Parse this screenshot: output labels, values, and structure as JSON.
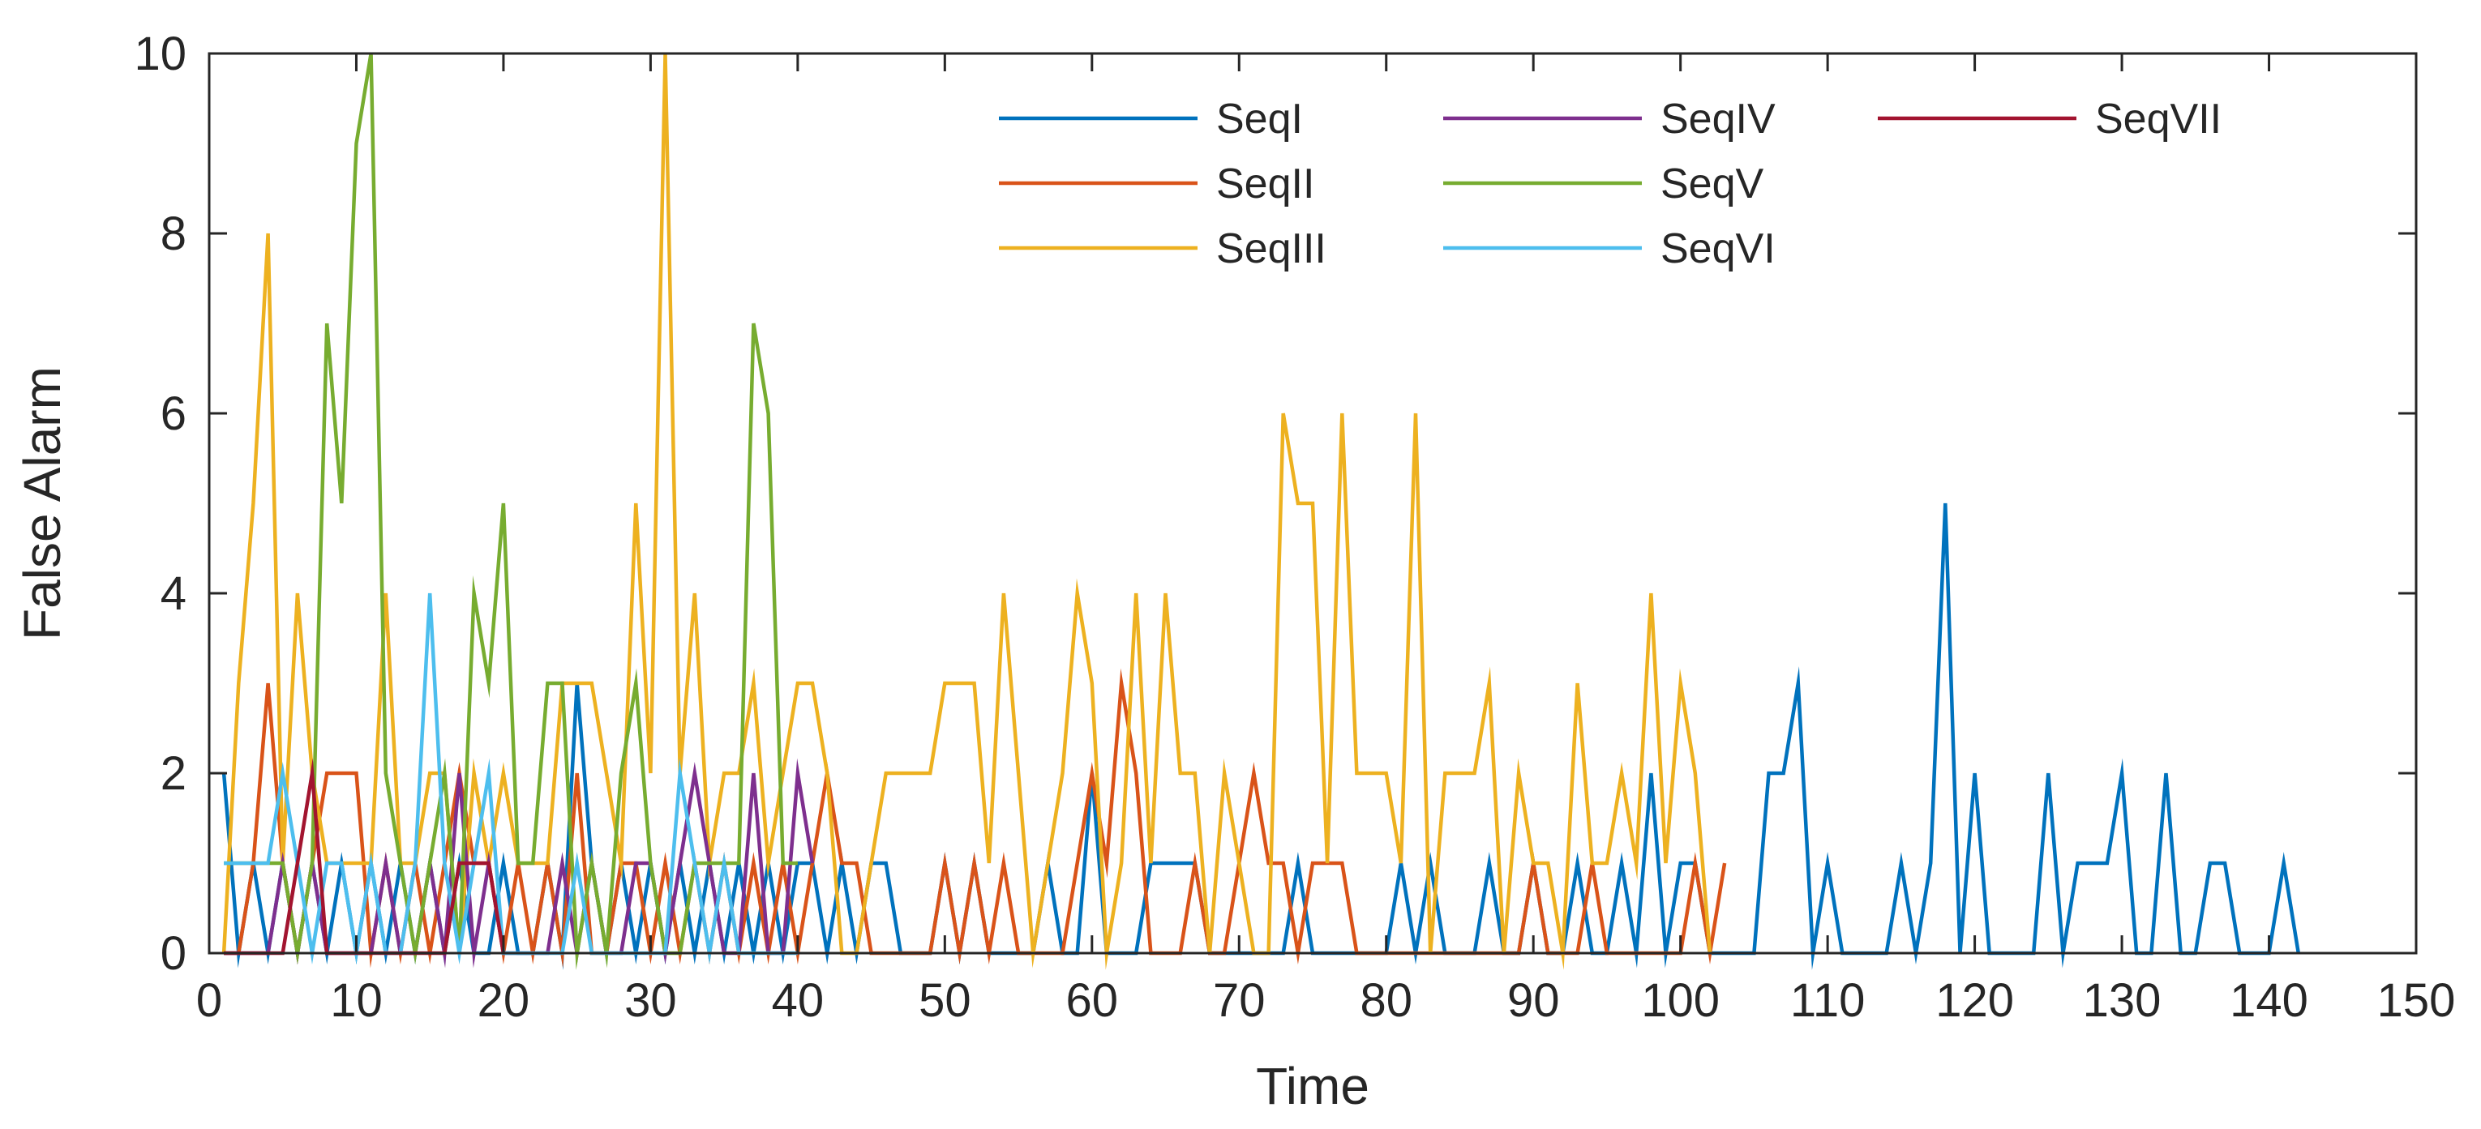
{
  "chart_data": {
    "type": "line",
    "title": "",
    "xlabel": "Time",
    "ylabel": "False Alarm",
    "xlim": [
      0,
      150
    ],
    "ylim": [
      0,
      10
    ],
    "xticks": [
      0,
      10,
      20,
      30,
      40,
      50,
      60,
      70,
      80,
      90,
      100,
      110,
      120,
      130,
      140,
      150
    ],
    "yticks": [
      0,
      2,
      4,
      6,
      8,
      10
    ],
    "grid": false,
    "legend_position": "top-right",
    "series": [
      {
        "name": "SeqI",
        "color": "#0072BD",
        "x": [
          1,
          2,
          3,
          4,
          5,
          6,
          7,
          8,
          9,
          10,
          11,
          12,
          13,
          14,
          15,
          16,
          17,
          18,
          19,
          20,
          21,
          22,
          23,
          24,
          25,
          26,
          27,
          28,
          29,
          30,
          31,
          32,
          33,
          34,
          35,
          36,
          37,
          38,
          39,
          40,
          41,
          42,
          43,
          44,
          45,
          46,
          47,
          48,
          49,
          50,
          51,
          52,
          53,
          54,
          55,
          56,
          57,
          58,
          59,
          60,
          61,
          62,
          63,
          64,
          65,
          66,
          67,
          68,
          69,
          70,
          71,
          72,
          73,
          74,
          75,
          76,
          77,
          78,
          79,
          80,
          81,
          82,
          83,
          84,
          85,
          86,
          87,
          88,
          89,
          90,
          91,
          92,
          93,
          94,
          95,
          96,
          97,
          98,
          99,
          100,
          101,
          102,
          103,
          104,
          105,
          106,
          107,
          108,
          109,
          110,
          111,
          112,
          113,
          114,
          115,
          116,
          117,
          118,
          119,
          120,
          121,
          122,
          123,
          124,
          125,
          126,
          127,
          128,
          129,
          130,
          131,
          132,
          133,
          134,
          135,
          136,
          137,
          138,
          139,
          140,
          141,
          142
        ],
        "values": [
          2,
          0,
          1,
          0,
          1,
          0,
          1,
          0,
          1,
          0,
          1,
          0,
          1,
          0,
          1,
          0,
          1,
          0,
          0,
          1,
          0,
          0,
          1,
          0,
          3,
          1,
          0,
          1,
          0,
          1,
          0,
          1,
          0,
          1,
          0,
          1,
          0,
          1,
          0,
          1,
          1,
          0,
          1,
          0,
          1,
          1,
          0,
          0,
          0,
          1,
          0,
          1,
          0,
          0,
          0,
          0,
          1,
          0,
          0,
          2,
          0,
          0,
          0,
          1,
          1,
          1,
          1,
          0,
          0,
          0,
          0,
          0,
          0,
          1,
          0,
          0,
          0,
          0,
          0,
          0,
          1,
          0,
          1,
          0,
          0,
          0,
          1,
          0,
          0,
          1,
          0,
          0,
          1,
          0,
          0,
          1,
          0,
          2,
          0,
          1,
          1,
          0,
          0,
          0,
          0,
          2,
          2,
          3,
          0,
          1,
          0,
          0,
          0,
          0,
          1,
          0,
          1,
          5,
          0,
          2,
          0,
          0,
          0,
          0,
          2,
          0,
          1,
          1,
          1,
          2,
          0,
          0,
          2,
          0,
          0,
          1,
          1,
          0,
          0,
          0,
          1,
          0
        ]
      },
      {
        "name": "SeqII",
        "color": "#D95319",
        "x": [
          1,
          2,
          3,
          4,
          5,
          6,
          7,
          8,
          9,
          10,
          11,
          12,
          13,
          14,
          15,
          16,
          17,
          18,
          19,
          20,
          21,
          22,
          23,
          24,
          25,
          26,
          27,
          28,
          29,
          30,
          31,
          32,
          33,
          34,
          35,
          36,
          37,
          38,
          39,
          40,
          41,
          42,
          43,
          44,
          45,
          46,
          47,
          48,
          49,
          50,
          51,
          52,
          53,
          54,
          55,
          56,
          57,
          58,
          59,
          60,
          61,
          62,
          63,
          64,
          65,
          66,
          67,
          68,
          69,
          70,
          71,
          72,
          73,
          74,
          75,
          76,
          77,
          78,
          79,
          80,
          81,
          82,
          83,
          84,
          85,
          86,
          87,
          88,
          89,
          90,
          91,
          92,
          93,
          94,
          95,
          96,
          97,
          98,
          99,
          100,
          101,
          102,
          103
        ],
        "values": [
          0,
          0,
          1,
          3,
          1,
          0,
          1,
          2,
          2,
          2,
          0,
          1,
          0,
          1,
          0,
          1,
          2,
          1,
          1,
          0,
          1,
          0,
          1,
          0,
          2,
          0,
          0,
          1,
          1,
          0,
          1,
          0,
          1,
          0,
          1,
          0,
          1,
          0,
          1,
          0,
          1,
          2,
          1,
          1,
          0,
          0,
          0,
          0,
          0,
          1,
          0,
          1,
          0,
          1,
          0,
          0,
          0,
          0,
          1,
          2,
          1,
          3,
          2,
          0,
          0,
          0,
          1,
          0,
          0,
          1,
          2,
          1,
          1,
          0,
          1,
          1,
          1,
          0,
          0,
          0,
          0,
          0,
          0,
          0,
          0,
          0,
          0,
          0,
          0,
          1,
          0,
          0,
          0,
          1,
          0,
          0,
          0,
          0,
          0,
          0,
          1,
          0,
          1
        ]
      },
      {
        "name": "SeqIII",
        "color": "#EDB120",
        "x": [
          1,
          2,
          3,
          4,
          5,
          6,
          7,
          8,
          9,
          10,
          11,
          12,
          13,
          14,
          15,
          16,
          17,
          18,
          19,
          20,
          21,
          22,
          23,
          24,
          25,
          26,
          27,
          28,
          29,
          30,
          31,
          32,
          33,
          34,
          35,
          36,
          37,
          38,
          39,
          40,
          41,
          42,
          43,
          44,
          45,
          46,
          47,
          48,
          49,
          50,
          51,
          52,
          53,
          54,
          55,
          56,
          57,
          58,
          59,
          60,
          61,
          62,
          63,
          64,
          65,
          66,
          67,
          68,
          69,
          70,
          71,
          72,
          73,
          74,
          75,
          76,
          77,
          78,
          79,
          80,
          81,
          82,
          83,
          84,
          85,
          86,
          87,
          88,
          89,
          90,
          91,
          92,
          93,
          94,
          95,
          96,
          97,
          98,
          99,
          100,
          101,
          102
        ],
        "values": [
          0,
          3,
          5,
          8,
          1,
          4,
          2,
          1,
          1,
          1,
          1,
          4,
          1,
          1,
          2,
          2,
          0,
          2,
          1,
          2,
          1,
          1,
          1,
          3,
          3,
          3,
          2,
          1,
          5,
          2,
          10,
          2,
          4,
          1,
          2,
          2,
          3,
          1,
          2,
          3,
          3,
          2,
          0,
          0,
          1,
          2,
          2,
          2,
          2,
          3,
          3,
          3,
          1,
          4,
          2,
          0,
          1,
          2,
          4,
          3,
          0,
          1,
          4,
          1,
          4,
          2,
          2,
          0,
          2,
          1,
          0,
          0,
          6,
          5,
          5,
          1,
          6,
          2,
          2,
          2,
          1,
          6,
          0,
          2,
          2,
          2,
          3,
          0,
          2,
          1,
          1,
          0,
          3,
          1,
          1,
          2,
          1,
          4,
          1,
          3,
          2,
          0
        ]
      },
      {
        "name": "SeqIV",
        "color": "#7E2F8E",
        "x": [
          1,
          2,
          3,
          4,
          5,
          6,
          7,
          8,
          9,
          10,
          11,
          12,
          13,
          14,
          15,
          16,
          17,
          18,
          19,
          20,
          21,
          22,
          23,
          24,
          25,
          26,
          27,
          28,
          29,
          30,
          31,
          32,
          33,
          34,
          35,
          36,
          37,
          38,
          39,
          40,
          41
        ],
        "values": [
          0,
          0,
          0,
          0,
          1,
          0,
          1,
          0,
          0,
          0,
          0,
          1,
          0,
          0,
          1,
          0,
          2,
          0,
          1,
          0,
          0,
          0,
          0,
          1,
          0,
          1,
          0,
          0,
          1,
          1,
          0,
          1,
          2,
          1,
          0,
          0,
          2,
          0,
          0,
          2,
          1
        ]
      },
      {
        "name": "SeqV",
        "color": "#77AC30",
        "x": [
          1,
          2,
          3,
          4,
          5,
          6,
          7,
          8,
          9,
          10,
          11,
          12,
          13,
          14,
          15,
          16,
          17,
          18,
          19,
          20,
          21,
          22,
          23,
          24,
          25,
          26,
          27,
          28,
          29,
          30,
          31,
          32,
          33,
          34,
          35,
          36,
          37,
          38,
          39,
          40
        ],
        "values": [
          1,
          1,
          1,
          1,
          1,
          0,
          1,
          7,
          5,
          9,
          10,
          2,
          1,
          0,
          1,
          2,
          0,
          4,
          3,
          5,
          1,
          1,
          3,
          3,
          0,
          1,
          0,
          2,
          3,
          1,
          0,
          0,
          1,
          1,
          1,
          1,
          7,
          6,
          1,
          1
        ]
      },
      {
        "name": "SeqVI",
        "color": "#4DBEEE",
        "x": [
          1,
          2,
          3,
          4,
          5,
          6,
          7,
          8,
          9,
          10,
          11,
          12,
          13,
          14,
          15,
          16,
          17,
          18,
          19,
          20,
          21,
          22,
          23,
          24,
          25,
          26,
          27,
          28,
          29,
          30,
          31,
          32,
          33,
          34,
          35,
          36,
          37,
          38,
          39,
          40
        ],
        "values": [
          1,
          1,
          1,
          1,
          2,
          1,
          0,
          1,
          1,
          0,
          1,
          0,
          0,
          1,
          4,
          1,
          0,
          1,
          2,
          0,
          0,
          0,
          0,
          0,
          1,
          0,
          0,
          0,
          0,
          0,
          0,
          2,
          1,
          0,
          1,
          0,
          0,
          0,
          0,
          0
        ]
      },
      {
        "name": "SeqVII",
        "color": "#A2142F",
        "x": [
          1,
          2,
          3,
          4,
          5,
          6,
          7,
          8,
          9,
          10,
          11,
          12,
          13,
          14,
          15,
          16,
          17,
          18,
          19,
          20
        ],
        "values": [
          0,
          0,
          0,
          0,
          0,
          1,
          2,
          0,
          0,
          0,
          0,
          0,
          0,
          0,
          0,
          0,
          1,
          1,
          1,
          0
        ]
      }
    ]
  }
}
